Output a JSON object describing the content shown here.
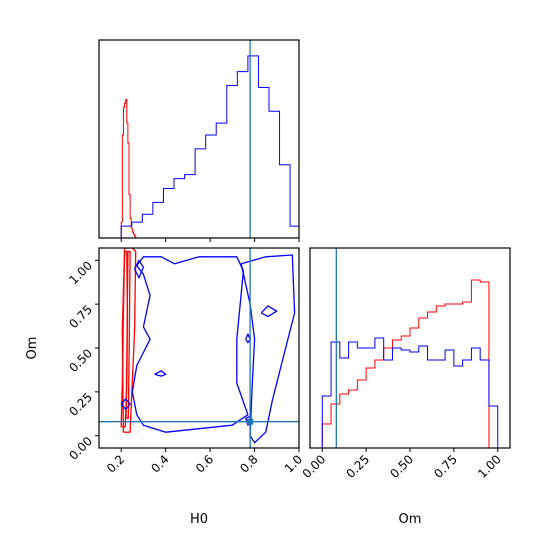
{
  "chart_data": [
    {
      "panel": "H0-marginal",
      "type": "histogram",
      "xlim": [
        0.1,
        1.0
      ],
      "truth": 0.78,
      "truth_color": "#1f77b4",
      "series": [
        {
          "color": "#ff0000",
          "edges": [
            0.2,
            0.205,
            0.21,
            0.215,
            0.22,
            0.225,
            0.23,
            0.235,
            0.24,
            0.245,
            0.25,
            0.255,
            0.26,
            0.265,
            0.27
          ],
          "heights": [
            0.08,
            0.52,
            0.66,
            0.68,
            0.7,
            0.58,
            0.48,
            0.22,
            0.1,
            0.05,
            0.03,
            0.02,
            0.01,
            0.0
          ]
        },
        {
          "color": "#0000ff",
          "edges": [
            0.2,
            0.2475,
            0.295,
            0.3425,
            0.39,
            0.4375,
            0.485,
            0.5325,
            0.58,
            0.6275,
            0.675,
            0.7225,
            0.77,
            0.8175,
            0.865,
            0.9125,
            0.96,
            1.0
          ],
          "heights": [
            0.06,
            0.08,
            0.12,
            0.18,
            0.25,
            0.3,
            0.32,
            0.45,
            0.52,
            0.58,
            0.77,
            0.84,
            0.92,
            0.76,
            0.64,
            0.37,
            0.06
          ]
        }
      ]
    },
    {
      "panel": "H0-Om-contour",
      "type": "contour",
      "xlim": [
        0.1,
        1.0
      ],
      "ylim": [
        -0.07,
        1.07
      ],
      "xlabel": "H0",
      "ylabel": "Om",
      "xticks": [
        0.2,
        0.4,
        0.6,
        0.8,
        1.0
      ],
      "xtick_labels": [
        "0.2",
        "0.4",
        "0.6",
        "0.8",
        "1.0"
      ],
      "yticks": [
        0.0,
        0.25,
        0.5,
        0.75,
        1.0
      ],
      "ytick_labels": [
        "0.00",
        "0.25",
        "0.50",
        "0.75",
        "1.00"
      ],
      "truth_point": [
        0.78,
        0.08
      ],
      "truth_color": "#1f77b4",
      "contours": [
        {
          "color": "#ff0000",
          "points": [
            [
              0.2,
              0.05
            ],
            [
              0.205,
              0.3
            ],
            [
              0.21,
              0.7
            ],
            [
              0.215,
              1.05
            ],
            [
              0.225,
              1.05
            ],
            [
              0.228,
              0.7
            ],
            [
              0.225,
              0.3
            ],
            [
              0.218,
              0.05
            ],
            [
              0.2,
              0.05
            ]
          ]
        },
        {
          "color": "#ff0000",
          "points": [
            [
              0.222,
              0.1
            ],
            [
              0.226,
              0.5
            ],
            [
              0.23,
              1.05
            ],
            [
              0.24,
              1.05
            ],
            [
              0.236,
              0.5
            ],
            [
              0.232,
              0.1
            ],
            [
              0.222,
              0.1
            ]
          ]
        },
        {
          "color": "#ff0000",
          "points": [
            [
              0.21,
              0.02
            ],
            [
              0.24,
              0.02
            ],
            [
              0.26,
              0.6
            ],
            [
              0.265,
              1.05
            ],
            [
              0.25,
              1.07
            ],
            [
              0.215,
              1.07
            ],
            [
              0.205,
              0.6
            ],
            [
              0.21,
              0.02
            ]
          ]
        },
        {
          "color": "#0000ff",
          "points": [
            [
              0.2,
              0.18
            ],
            [
              0.22,
              0.21
            ],
            [
              0.24,
              0.18
            ],
            [
              0.22,
              0.15
            ],
            [
              0.2,
              0.18
            ]
          ]
        },
        {
          "color": "#0000ff",
          "points": [
            [
              0.26,
              0.95
            ],
            [
              0.28,
              1.0
            ],
            [
              0.3,
              0.96
            ],
            [
              0.28,
              0.9
            ],
            [
              0.26,
              0.95
            ]
          ]
        },
        {
          "color": "#0000ff",
          "points": [
            [
              0.27,
              0.97
            ],
            [
              0.3,
              1.02
            ],
            [
              0.38,
              1.02
            ],
            [
              0.44,
              0.98
            ],
            [
              0.55,
              1.02
            ],
            [
              0.72,
              1.02
            ],
            [
              0.75,
              0.94
            ],
            [
              0.72,
              0.55
            ],
            [
              0.72,
              0.3
            ],
            [
              0.77,
              0.12
            ],
            [
              0.7,
              0.06
            ],
            [
              0.55,
              0.04
            ],
            [
              0.4,
              0.02
            ],
            [
              0.3,
              0.06
            ],
            [
              0.27,
              0.12
            ],
            [
              0.25,
              0.25
            ],
            [
              0.27,
              0.4
            ],
            [
              0.33,
              0.55
            ],
            [
              0.3,
              0.62
            ],
            [
              0.33,
              0.8
            ],
            [
              0.3,
              0.92
            ],
            [
              0.27,
              0.97
            ]
          ]
        },
        {
          "color": "#0000ff",
          "points": [
            [
              0.74,
              0.98
            ],
            [
              0.85,
              1.02
            ],
            [
              0.97,
              1.03
            ],
            [
              0.98,
              0.7
            ],
            [
              0.92,
              0.4
            ],
            [
              0.88,
              0.2
            ],
            [
              0.85,
              0.02
            ],
            [
              0.8,
              -0.04
            ],
            [
              0.78,
              0.0
            ],
            [
              0.79,
              0.3
            ],
            [
              0.8,
              0.55
            ],
            [
              0.78,
              0.75
            ],
            [
              0.74,
              0.98
            ]
          ]
        },
        {
          "color": "#0000ff",
          "points": [
            [
              0.76,
              0.1
            ],
            [
              0.78,
              0.11
            ],
            [
              0.79,
              0.08
            ],
            [
              0.77,
              0.06
            ],
            [
              0.76,
              0.1
            ]
          ]
        },
        {
          "color": "#0000ff",
          "points": [
            [
              0.83,
              0.7
            ],
            [
              0.86,
              0.74
            ],
            [
              0.9,
              0.71
            ],
            [
              0.86,
              0.68
            ],
            [
              0.83,
              0.7
            ]
          ]
        },
        {
          "color": "#0000ff",
          "points": [
            [
              0.76,
              0.55
            ],
            [
              0.77,
              0.58
            ],
            [
              0.78,
              0.55
            ],
            [
              0.77,
              0.53
            ],
            [
              0.76,
              0.55
            ]
          ]
        },
        {
          "color": "#0000ff",
          "points": [
            [
              0.35,
              0.35
            ],
            [
              0.38,
              0.37
            ],
            [
              0.4,
              0.35
            ],
            [
              0.38,
              0.34
            ],
            [
              0.35,
              0.35
            ]
          ]
        }
      ]
    },
    {
      "panel": "Om-marginal",
      "type": "histogram",
      "xlim": [
        -0.07,
        1.07
      ],
      "xlabel": "Om",
      "xticks": [
        0.0,
        0.25,
        0.5,
        0.75,
        1.0
      ],
      "xtick_labels": [
        "0.00",
        "0.25",
        "0.50",
        "0.75",
        "1.00"
      ],
      "truth": 0.08,
      "truth_color": "#1f77b4",
      "series": [
        {
          "color": "#ff0000",
          "edges": [
            0.0,
            0.05,
            0.1,
            0.15,
            0.2,
            0.25,
            0.3,
            0.35,
            0.4,
            0.45,
            0.5,
            0.55,
            0.6,
            0.65,
            0.7,
            0.75,
            0.8,
            0.85,
            0.9,
            0.95,
            1.0
          ],
          "heights": [
            0.12,
            0.22,
            0.27,
            0.29,
            0.34,
            0.4,
            0.44,
            0.5,
            0.54,
            0.56,
            0.6,
            0.65,
            0.68,
            0.71,
            0.72,
            0.72,
            0.73,
            0.84,
            0.83,
            0.0
          ]
        },
        {
          "color": "#0000ff",
          "edges": [
            0.0,
            0.05,
            0.1,
            0.15,
            0.2,
            0.25,
            0.3,
            0.35,
            0.4,
            0.45,
            0.5,
            0.55,
            0.6,
            0.65,
            0.7,
            0.75,
            0.8,
            0.85,
            0.9,
            0.95,
            1.0
          ],
          "heights": [
            0.26,
            0.53,
            0.45,
            0.53,
            0.5,
            0.5,
            0.55,
            0.44,
            0.5,
            0.49,
            0.48,
            0.51,
            0.44,
            0.44,
            0.49,
            0.41,
            0.44,
            0.5,
            0.44,
            0.21
          ]
        }
      ]
    }
  ]
}
